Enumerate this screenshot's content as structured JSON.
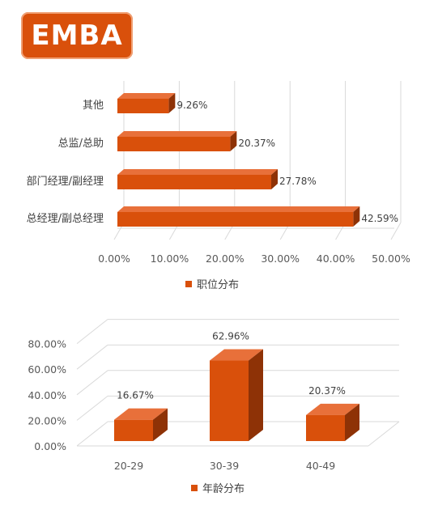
{
  "header": {
    "badge_text": "EMBA"
  },
  "colors": {
    "front": "#d9500b",
    "top": "#e8703a",
    "side": "#8e3206",
    "grid": "#d9d9d9"
  },
  "chart_data": [
    {
      "type": "bar",
      "orientation": "horizontal",
      "categories": [
        "总经理/副总经理",
        "部门经理/副经理",
        "总监/总助",
        "其他"
      ],
      "values": [
        42.59,
        27.78,
        20.37,
        9.26
      ],
      "data_labels": [
        "42.59%",
        "27.78%",
        "20.37%",
        "9.26%"
      ],
      "xlim": [
        0,
        50
      ],
      "x_ticks": [
        "0.00%",
        "10.00%",
        "20.00%",
        "30.00%",
        "40.00%",
        "50.00%"
      ],
      "legend": "职位分布",
      "legend_placement": "bottom",
      "grid": true
    },
    {
      "type": "bar",
      "orientation": "vertical",
      "categories": [
        "20-29",
        "30-39",
        "40-49"
      ],
      "values": [
        16.67,
        62.96,
        20.37
      ],
      "data_labels": [
        "16.67%",
        "62.96%",
        "20.37%"
      ],
      "ylim": [
        0,
        80
      ],
      "y_ticks": [
        "0.00%",
        "20.00%",
        "40.00%",
        "60.00%",
        "80.00%"
      ],
      "legend": "年龄分布",
      "legend_placement": "bottom",
      "grid": true
    }
  ]
}
